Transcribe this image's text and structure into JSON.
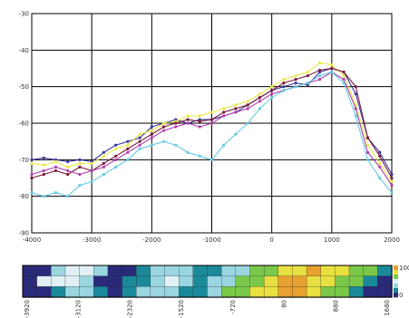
{
  "chart_data": [
    {
      "type": "line",
      "title": "",
      "xlabel": "",
      "ylabel": "",
      "xlim": [
        -4000,
        2000
      ],
      "ylim": [
        -90,
        -30
      ],
      "grid": true,
      "legend": "none",
      "x_ticks": [
        "-4000",
        "-3000",
        "-2000",
        "-1000",
        "0",
        "1000",
        "2000"
      ],
      "y_ticks": [
        "-30",
        "-40",
        "-50",
        "-60",
        "-70",
        "-80",
        "-90"
      ],
      "series": [
        {
          "color": "#3a3a9a",
          "x": [
            -4000,
            -3800,
            -3600,
            -3400,
            -3200,
            -3000,
            -2800,
            -2600,
            -2400,
            -2200,
            -2000,
            -1800,
            -1600,
            -1400,
            -1200,
            -1000,
            -800,
            -600,
            -400,
            -200,
            0,
            200,
            400,
            600,
            800,
            1000,
            1200,
            1400,
            1600,
            1800,
            2000
          ],
          "y": [
            -70,
            -69.5,
            -70,
            -70.5,
            -70,
            -70.5,
            -68,
            -66,
            -65,
            -64,
            -61,
            -60,
            -59,
            -60,
            -59,
            -59,
            -58,
            -57,
            -55,
            -53,
            -51,
            -50,
            -49,
            -49.5,
            -46,
            -45,
            -46,
            -52,
            -64,
            -68,
            -74
          ]
        },
        {
          "color": "#e8e84a",
          "x": [
            -4000,
            -3800,
            -3600,
            -3400,
            -3200,
            -3000,
            -2800,
            -2600,
            -2400,
            -2200,
            -2000,
            -1800,
            -1600,
            -1400,
            -1200,
            -1000,
            -800,
            -600,
            -400,
            -200,
            0,
            200,
            400,
            600,
            800,
            1000,
            1200,
            1400,
            1600,
            1800,
            2000
          ],
          "y": [
            -71,
            -71.5,
            -70.5,
            -72,
            -71,
            -71,
            -69,
            -67,
            -66,
            -63,
            -62,
            -60,
            -59.5,
            -58,
            -58,
            -57,
            -56,
            -55,
            -54,
            -52,
            -50,
            -48,
            -47,
            -46,
            -43.5,
            -44,
            -47,
            -55,
            -66,
            -71,
            -76
          ]
        },
        {
          "color": "#7a1a3a",
          "x": [
            -4000,
            -3800,
            -3600,
            -3400,
            -3200,
            -3000,
            -2800,
            -2600,
            -2400,
            -2200,
            -2000,
            -1800,
            -1600,
            -1400,
            -1200,
            -1000,
            -800,
            -600,
            -400,
            -200,
            0,
            200,
            400,
            600,
            800,
            1000,
            1200,
            1400,
            1600,
            1800,
            2000
          ],
          "y": [
            -75,
            -74,
            -73,
            -74,
            -72,
            -73,
            -71,
            -69,
            -67,
            -65,
            -63,
            -61,
            -60,
            -59,
            -59.5,
            -59,
            -57,
            -56,
            -55,
            -53,
            -51,
            -49,
            -48,
            -47,
            -45.5,
            -45,
            -46,
            -50,
            -64,
            -69,
            -75
          ]
        },
        {
          "color": "#b040b0",
          "x": [
            -4000,
            -3800,
            -3600,
            -3400,
            -3200,
            -3000,
            -2800,
            -2600,
            -2400,
            -2200,
            -2000,
            -1800,
            -1600,
            -1400,
            -1200,
            -1000,
            -800,
            -600,
            -400,
            -200,
            0,
            200,
            400,
            600,
            800,
            1000,
            1200,
            1400,
            1600,
            1800,
            2000
          ],
          "y": [
            -74,
            -73,
            -72,
            -73,
            -74,
            -73,
            -72,
            -70,
            -68,
            -66,
            -64,
            -62,
            -61,
            -60,
            -61,
            -60,
            -58,
            -57,
            -56,
            -54,
            -52,
            -51,
            -50,
            -49,
            -48,
            -46,
            -48,
            -56,
            -68,
            -72,
            -77
          ]
        },
        {
          "color": "#66c8e0",
          "x": [
            -4000,
            -3800,
            -3600,
            -3400,
            -3200,
            -3000,
            -2800,
            -2600,
            -2400,
            -2200,
            -2000,
            -1800,
            -1600,
            -1400,
            -1200,
            -1000,
            -800,
            -600,
            -400,
            -200,
            0,
            200,
            400,
            600,
            800,
            1000,
            1200,
            1400,
            1600,
            1800,
            2000
          ],
          "y": [
            -79,
            -80,
            -79,
            -80,
            -77,
            -76,
            -74,
            -72,
            -70,
            -67,
            -66,
            -65,
            -66,
            -68,
            -69,
            -70,
            -66,
            -63,
            -60,
            -56,
            -53,
            -51,
            -50,
            -49,
            -47,
            -46,
            -49,
            -58,
            -70,
            -75,
            -79
          ]
        }
      ]
    },
    {
      "type": "heatmap",
      "title": "",
      "x_ticks": [
        "-3920",
        "-3120",
        "-2320",
        "-1520",
        "-720",
        "80",
        "880",
        "1680"
      ],
      "colorbar_ticks": [
        "100",
        "0"
      ],
      "colors": [
        "#2a2a7a",
        "#1a8a9a",
        "#9ad6e0",
        "#e0f0f4",
        "#7ac84a",
        "#e8e040",
        "#e8a030"
      ],
      "cells": [
        [
          0,
          0,
          2,
          3,
          3,
          2,
          0,
          0,
          1,
          2,
          2,
          2,
          1,
          1,
          2,
          2,
          4,
          4,
          5,
          5,
          6,
          5,
          5,
          4,
          4,
          1
        ],
        [
          0,
          3,
          3,
          3,
          2,
          0,
          0,
          1,
          1,
          2,
          3,
          2,
          1,
          2,
          2,
          4,
          4,
          5,
          6,
          6,
          5,
          5,
          4,
          4,
          1,
          0
        ],
        [
          0,
          0,
          1,
          2,
          2,
          1,
          0,
          1,
          2,
          2,
          2,
          1,
          1,
          2,
          4,
          4,
          5,
          5,
          6,
          6,
          5,
          4,
          4,
          1,
          0,
          0
        ]
      ]
    }
  ]
}
